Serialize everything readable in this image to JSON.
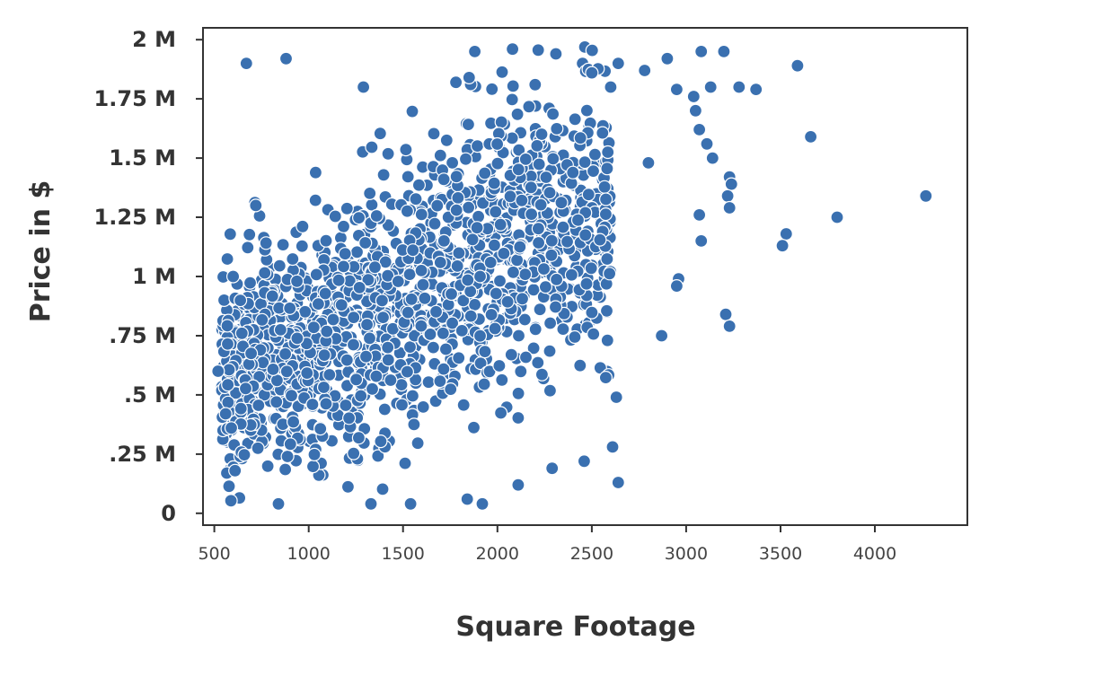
{
  "chart_data": {
    "type": "scatter",
    "title": "",
    "xlabel": "Square Footage",
    "ylabel": "Price in $",
    "xlim": [
      440,
      4490
    ],
    "ylim": [
      -0.05,
      2.05
    ],
    "grid": false,
    "xticks": [
      {
        "value": 500,
        "label": "500"
      },
      {
        "value": 1000,
        "label": "1000"
      },
      {
        "value": 1500,
        "label": "1500"
      },
      {
        "value": 2000,
        "label": "2000"
      },
      {
        "value": 2500,
        "label": "2500"
      },
      {
        "value": 3000,
        "label": "3000"
      },
      {
        "value": 3500,
        "label": "3500"
      },
      {
        "value": 4000,
        "label": "4000"
      }
    ],
    "yticks": [
      {
        "value": 0,
        "label": "0"
      },
      {
        "value": 0.25,
        "label": ".25 M"
      },
      {
        "value": 0.5,
        "label": ".5 M"
      },
      {
        "value": 0.75,
        "label": ".75 M"
      },
      {
        "value": 1.0,
        "label": "1 M"
      },
      {
        "value": 1.25,
        "label": "1.25 M"
      },
      {
        "value": 1.5,
        "label": "1.5 M"
      },
      {
        "value": 1.75,
        "label": "1.75 M"
      },
      {
        "value": 2.0,
        "label": "2 M"
      }
    ],
    "series": [
      {
        "color": "#3a70b0",
        "points": [
          [
            670,
            1.9
          ],
          [
            880,
            1.92
          ],
          [
            1880,
            1.95
          ],
          [
            2080,
            1.96
          ],
          [
            2310,
            1.94
          ],
          [
            2640,
            1.9
          ],
          [
            2900,
            1.92
          ],
          [
            3080,
            1.95
          ],
          [
            3200,
            1.95
          ],
          [
            3590,
            1.89
          ],
          [
            2780,
            1.87
          ],
          [
            2500,
            1.86
          ],
          [
            1290,
            1.8
          ],
          [
            1780,
            1.82
          ],
          [
            1850,
            1.84
          ],
          [
            2200,
            1.81
          ],
          [
            2600,
            1.8
          ],
          [
            2950,
            1.79
          ],
          [
            3130,
            1.8
          ],
          [
            3370,
            1.79
          ],
          [
            3040,
            1.76
          ],
          [
            3050,
            1.7
          ],
          [
            3070,
            1.62
          ],
          [
            3660,
            1.59
          ],
          [
            3110,
            1.56
          ],
          [
            3140,
            1.5
          ],
          [
            3230,
            1.42
          ],
          [
            3240,
            1.39
          ],
          [
            3220,
            1.34
          ],
          [
            3230,
            1.29
          ],
          [
            4270,
            1.34
          ],
          [
            3800,
            1.25
          ],
          [
            3070,
            1.26
          ],
          [
            3530,
            1.18
          ],
          [
            3510,
            1.13
          ],
          [
            3080,
            1.15
          ],
          [
            2960,
            0.99
          ],
          [
            2950,
            0.96
          ],
          [
            3210,
            0.84
          ],
          [
            3230,
            0.79
          ],
          [
            2870,
            0.75
          ],
          [
            2640,
            0.13
          ],
          [
            2630,
            0.49
          ],
          [
            2610,
            0.28
          ],
          [
            2460,
            0.22
          ],
          [
            2290,
            0.19
          ],
          [
            2110,
            0.12
          ],
          [
            1920,
            0.04
          ],
          [
            1840,
            0.06
          ],
          [
            840,
            0.04
          ],
          [
            1330,
            0.04
          ],
          [
            1540,
            0.04
          ],
          [
            560,
            0.42
          ],
          [
            590,
            0.36
          ],
          [
            520,
            0.6
          ],
          [
            610,
            0.18
          ],
          [
            720,
            1.3
          ],
          [
            600,
            1.0
          ],
          [
            3280,
            1.8
          ],
          [
            2800,
            1.48
          ]
        ]
      }
    ]
  }
}
